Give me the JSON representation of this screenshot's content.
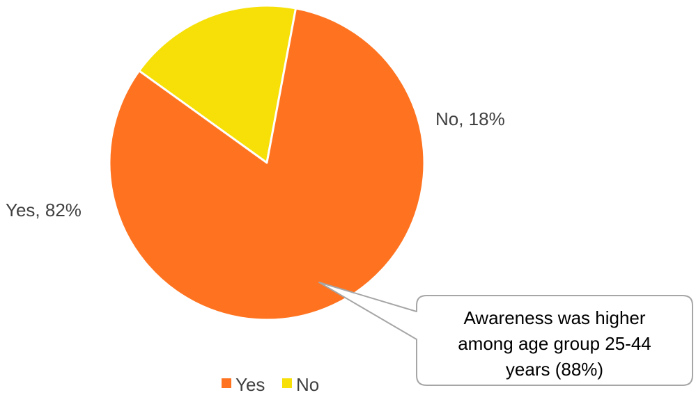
{
  "chart_data": {
    "type": "pie",
    "slices": [
      {
        "label": "Yes",
        "value": 82,
        "color": "#ff7320",
        "data_label": "Yes, 82%"
      },
      {
        "label": "No",
        "value": 18,
        "color": "#f6e008",
        "data_label": "No, 18%"
      }
    ],
    "legend": {
      "position": "bottom",
      "entries": [
        "Yes",
        "No"
      ]
    },
    "annotation": {
      "lines": [
        "Awareness was higher",
        "among age group 25-44",
        "years (88%)"
      ],
      "points_to": "Yes"
    }
  }
}
